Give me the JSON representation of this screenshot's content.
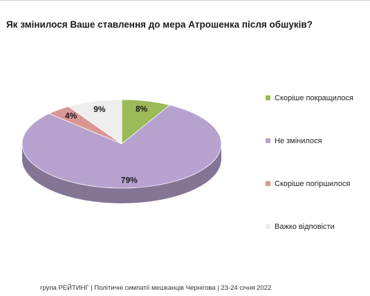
{
  "title": "Як змінилося Ваше ставлення до мера Атрошенка після обшуків?",
  "footer": "група РЕЙТИНГ  | Політичні симпатії мешканців Чернігова | 23-24 січня 2022",
  "chart_data": {
    "type": "pie",
    "title": "Як змінилося Ваше ставлення до мера Атрошенка після обшуків?",
    "legend_position": "right",
    "series": [
      {
        "name": "Скоріше покращилося",
        "value": 8,
        "label": "8%",
        "color": "#9bbb59"
      },
      {
        "name": "Не змінилося",
        "value": 79,
        "label": "79%",
        "color": "#b7a2cf"
      },
      {
        "name": "Скоріше погіршилося",
        "value": 4,
        "label": "4%",
        "color": "#d99694"
      },
      {
        "name": "Важко відповісти",
        "value": 9,
        "label": "9%",
        "color": "#eeeeee"
      }
    ]
  }
}
